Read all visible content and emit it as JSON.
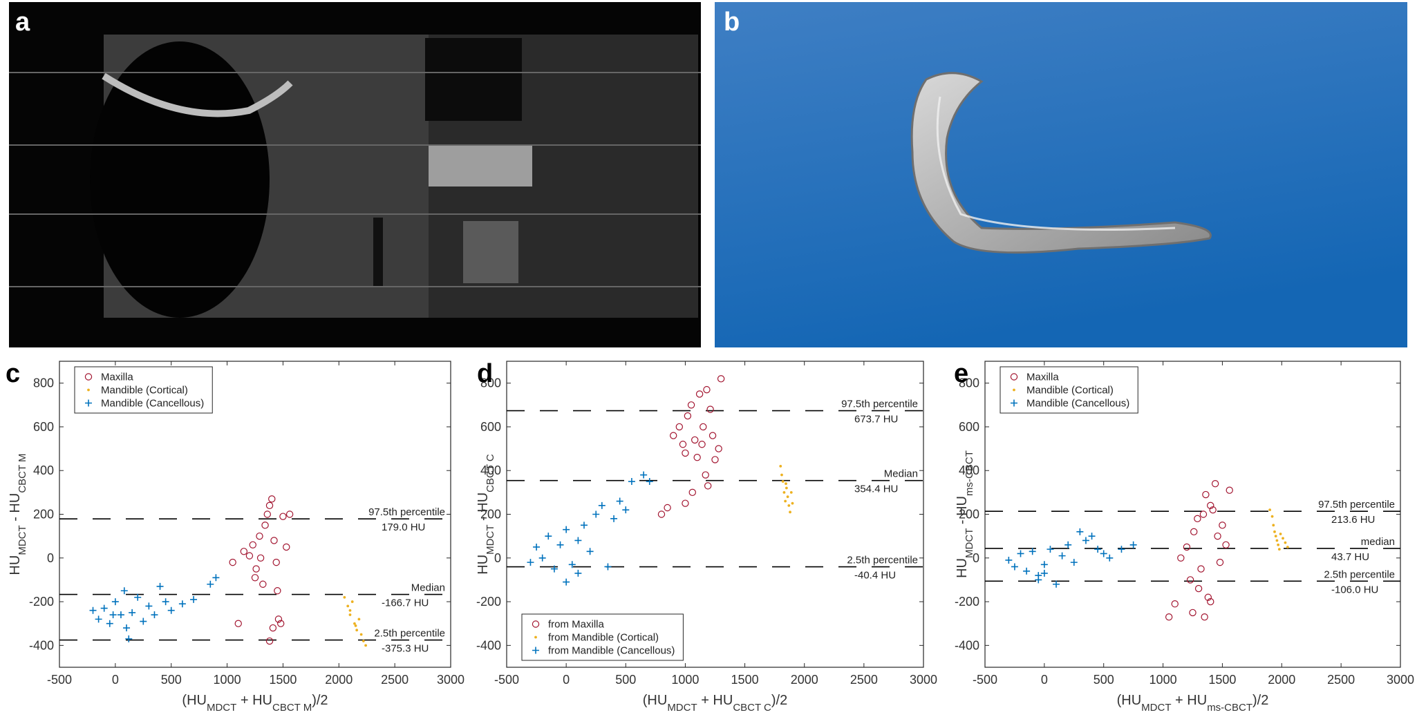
{
  "images": [
    {
      "label": "a"
    },
    {
      "label": "b"
    }
  ],
  "chart_data": [
    {
      "type": "scatter",
      "label": "c",
      "ylabel": [
        {
          "text": "HU"
        },
        {
          "text": "MDCT",
          "sub": true
        },
        {
          "text": " - HU"
        },
        {
          "text": "CBCT M",
          "sub": true
        }
      ],
      "xlabel": [
        {
          "text": "(HU"
        },
        {
          "text": "MDCT",
          "sub": true
        },
        {
          "text": " + HU"
        },
        {
          "text": "CBCT M",
          "sub": true
        },
        {
          "text": ")/2"
        }
      ],
      "xlim": [
        -500,
        3000
      ],
      "xticks": [
        -500,
        0,
        500,
        1000,
        1500,
        2000,
        2500,
        3000
      ],
      "ylim": [
        -500,
        900
      ],
      "yticks": [
        -400,
        -200,
        0,
        200,
        400,
        600,
        800
      ],
      "legend": "upper left",
      "series": [
        {
          "name": "Maxilla",
          "color": "#a2142f",
          "marker": "circle",
          "x": [
            1050,
            1100,
            1150,
            1200,
            1230,
            1260,
            1290,
            1320,
            1340,
            1360,
            1380,
            1400,
            1420,
            1440,
            1460,
            1480,
            1500,
            1530,
            1560,
            1410,
            1380,
            1450,
            1300,
            1250
          ],
          "values": [
            -20,
            -300,
            30,
            10,
            60,
            -50,
            100,
            -120,
            150,
            200,
            240,
            270,
            80,
            -20,
            -280,
            -300,
            190,
            50,
            200,
            -320,
            -380,
            -150,
            0,
            -90
          ]
        },
        {
          "name": "Mandible (Cortical)",
          "color": "#edb120",
          "marker": "dot",
          "x": [
            2050,
            2080,
            2100,
            2120,
            2140,
            2160,
            2180,
            2200,
            2220,
            2240,
            2100,
            2150
          ],
          "values": [
            -180,
            -220,
            -260,
            -200,
            -300,
            -330,
            -280,
            -350,
            -380,
            -400,
            -240,
            -310
          ]
        },
        {
          "name": "Mandible (Cancellous)",
          "color": "#0072bd",
          "marker": "plus",
          "x": [
            -200,
            -150,
            -100,
            -50,
            0,
            50,
            100,
            150,
            200,
            250,
            300,
            350,
            400,
            450,
            500,
            600,
            700,
            850,
            900,
            120,
            80,
            -20
          ],
          "values": [
            -240,
            -280,
            -230,
            -300,
            -200,
            -260,
            -320,
            -250,
            -180,
            -290,
            -220,
            -260,
            -130,
            -200,
            -240,
            -210,
            -190,
            -120,
            -90,
            -370,
            -150,
            -260
          ]
        }
      ],
      "reference_lines": [
        {
          "value": 179.0,
          "label": "97.5th percentile",
          "value_label": "179.0 HU"
        },
        {
          "value": -166.7,
          "label": "Median",
          "value_label": "-166.7 HU"
        },
        {
          "value": -375.3,
          "label": "2.5th percentile",
          "value_label": "-375.3 HU"
        }
      ]
    },
    {
      "type": "scatter",
      "label": "d",
      "ylabel": [
        {
          "text": "HU"
        },
        {
          "text": "MDCT",
          "sub": true
        },
        {
          "text": " - HU"
        },
        {
          "text": "CBCT C",
          "sub": true
        }
      ],
      "xlabel": [
        {
          "text": "(HU"
        },
        {
          "text": "MDCT",
          "sub": true
        },
        {
          "text": " + HU"
        },
        {
          "text": "CBCT C",
          "sub": true
        },
        {
          "text": ")/2"
        }
      ],
      "xlim": [
        -500,
        3000
      ],
      "xticks": [
        -500,
        0,
        500,
        1000,
        1500,
        2000,
        2500,
        3000
      ],
      "ylim": [
        -500,
        900
      ],
      "yticks": [
        -400,
        -200,
        0,
        200,
        400,
        600,
        800
      ],
      "legend": "lower left",
      "series": [
        {
          "name": "from Maxilla",
          "color": "#a2142f",
          "marker": "circle",
          "x": [
            800,
            850,
            900,
            950,
            980,
            1000,
            1020,
            1050,
            1080,
            1100,
            1120,
            1150,
            1170,
            1190,
            1210,
            1230,
            1250,
            1280,
            1300,
            1060,
            1140,
            1180,
            1000
          ],
          "values": [
            200,
            230,
            560,
            600,
            520,
            480,
            650,
            700,
            540,
            460,
            750,
            600,
            380,
            330,
            680,
            560,
            450,
            500,
            820,
            300,
            520,
            770,
            250
          ]
        },
        {
          "name": "from Mandible (Cortical)",
          "color": "#edb120",
          "marker": "dot",
          "x": [
            1800,
            1810,
            1820,
            1830,
            1840,
            1850,
            1860,
            1870,
            1880,
            1890,
            1900,
            1845
          ],
          "values": [
            420,
            380,
            350,
            300,
            260,
            320,
            280,
            240,
            210,
            300,
            250,
            340
          ]
        },
        {
          "name": "from Mandible (Cancellous)",
          "color": "#0072bd",
          "marker": "plus",
          "x": [
            -300,
            -250,
            -200,
            -150,
            -100,
            -50,
            0,
            50,
            100,
            150,
            200,
            250,
            300,
            350,
            400,
            450,
            500,
            550,
            650,
            700,
            0,
            100
          ],
          "values": [
            -20,
            50,
            0,
            100,
            -50,
            60,
            130,
            -30,
            80,
            150,
            30,
            200,
            240,
            -40,
            180,
            260,
            220,
            350,
            380,
            350,
            -110,
            -70
          ]
        }
      ],
      "reference_lines": [
        {
          "value": 673.7,
          "label": "97.5th percentile",
          "value_label": "673.7 HU"
        },
        {
          "value": 354.4,
          "label": "Median",
          "value_label": "354.4 HU"
        },
        {
          "value": -40.4,
          "label": "2.5th percentile",
          "value_label": "-40.4 HU"
        }
      ]
    },
    {
      "type": "scatter",
      "label": "e",
      "ylabel": [
        {
          "text": "HU"
        },
        {
          "text": "MDCT",
          "sub": true
        },
        {
          "text": " - HU"
        },
        {
          "text": "ms-CBCT",
          "sub": true
        }
      ],
      "xlabel": [
        {
          "text": "(HU"
        },
        {
          "text": "MDCT",
          "sub": true
        },
        {
          "text": " + HU"
        },
        {
          "text": "ms-CBCT",
          "sub": true
        },
        {
          "text": ")/2"
        }
      ],
      "xlim": [
        -500,
        3000
      ],
      "xticks": [
        -500,
        0,
        500,
        1000,
        1500,
        2000,
        2500,
        3000
      ],
      "ylim": [
        -500,
        900
      ],
      "yticks": [
        -400,
        -200,
        0,
        200,
        400,
        600,
        800
      ],
      "legend": "upper left",
      "series": [
        {
          "name": "Maxilla",
          "color": "#a2142f",
          "marker": "circle",
          "x": [
            1050,
            1100,
            1150,
            1200,
            1230,
            1260,
            1290,
            1320,
            1340,
            1360,
            1380,
            1400,
            1420,
            1440,
            1460,
            1480,
            1500,
            1530,
            1560,
            1250,
            1300,
            1350,
            1400
          ],
          "values": [
            -270,
            -210,
            0,
            50,
            -100,
            120,
            180,
            -50,
            200,
            290,
            -180,
            240,
            220,
            340,
            100,
            -20,
            150,
            60,
            310,
            -250,
            -140,
            -270,
            -200
          ]
        },
        {
          "name": "Mandible (Cortical)",
          "color": "#edb120",
          "marker": "dot",
          "x": [
            1900,
            1920,
            1930,
            1940,
            1950,
            1960,
            1970,
            1980,
            1990,
            2010,
            2030,
            2050
          ],
          "values": [
            220,
            190,
            150,
            120,
            100,
            80,
            60,
            40,
            110,
            90,
            70,
            50
          ]
        },
        {
          "name": "Mandible (Cancellous)",
          "color": "#0072bd",
          "marker": "plus",
          "x": [
            -300,
            -250,
            -200,
            -150,
            -100,
            -50,
            0,
            50,
            100,
            150,
            200,
            250,
            300,
            350,
            400,
            450,
            500,
            550,
            650,
            750,
            -50,
            0
          ],
          "values": [
            -10,
            -40,
            20,
            -60,
            30,
            -80,
            -30,
            40,
            -120,
            10,
            60,
            -20,
            120,
            80,
            100,
            40,
            20,
            0,
            40,
            60,
            -100,
            -70
          ]
        }
      ],
      "reference_lines": [
        {
          "value": 213.6,
          "label": "97.5th percentile",
          "value_label": "213.6 HU"
        },
        {
          "value": 43.7,
          "label": "median",
          "value_label": "43.7 HU"
        },
        {
          "value": -106.0,
          "label": "2.5th percentile",
          "value_label": "-106.0 HU"
        }
      ]
    }
  ]
}
